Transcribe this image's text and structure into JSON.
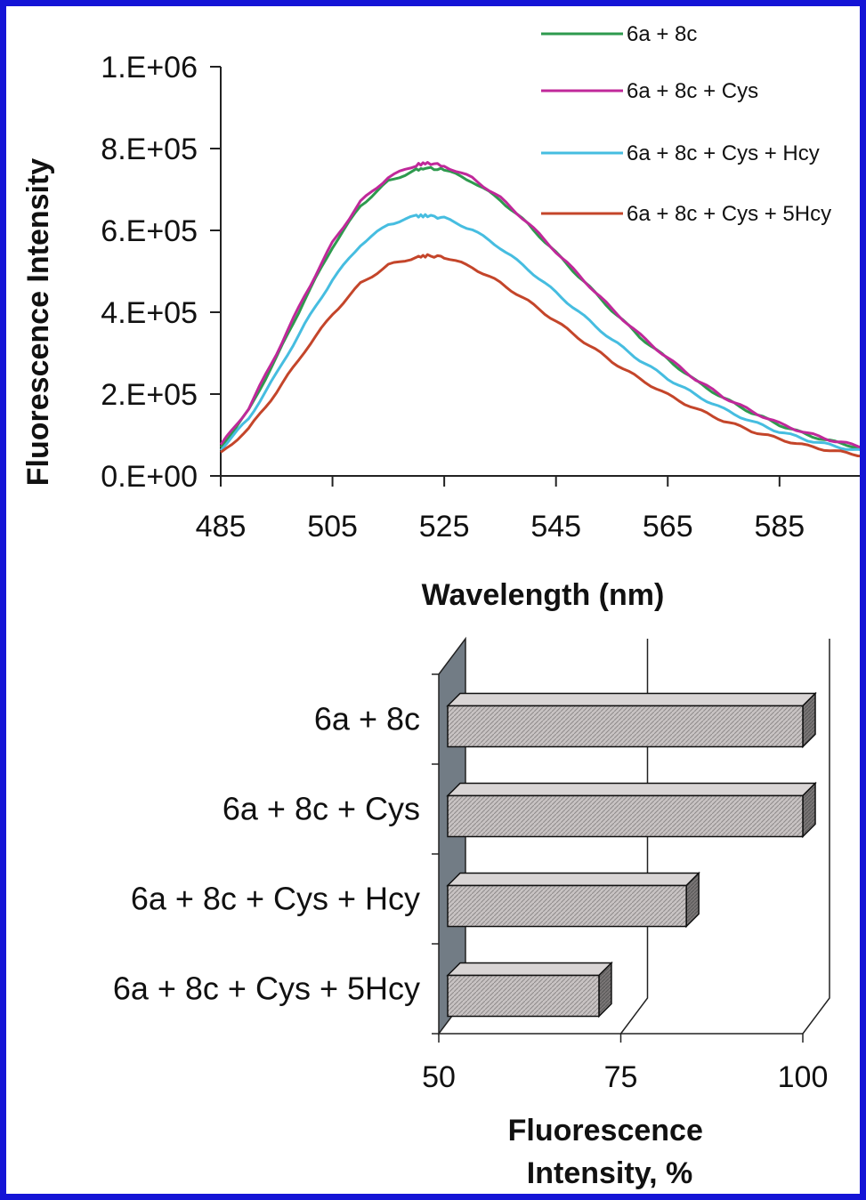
{
  "chart_data": [
    {
      "type": "line",
      "xlabel": "Wavelength (nm)",
      "ylabel": "Fluorescence Intensity",
      "xlim": [
        485,
        600
      ],
      "ylim": [
        0,
        1000000
      ],
      "x_ticks": [
        "485",
        "505",
        "525",
        "545",
        "565",
        "585"
      ],
      "y_ticks": [
        "0.E+00",
        "2.E+05",
        "4.E+05",
        "6.E+05",
        "8.E+05",
        "1.E+06"
      ],
      "legend_position": "top-right",
      "x": [
        485,
        490,
        495,
        500,
        505,
        510,
        515,
        520,
        522,
        525,
        530,
        535,
        540,
        545,
        550,
        555,
        560,
        565,
        570,
        575,
        580,
        585,
        590,
        595,
        600
      ],
      "series": [
        {
          "name": "6a + 8c",
          "color": "#2e9a4e",
          "values": [
            70000,
            160000,
            290000,
            430000,
            560000,
            660000,
            720000,
            748000,
            752000,
            748000,
            720000,
            675000,
            615000,
            545000,
            475000,
            405000,
            340000,
            285000,
            232000,
            190000,
            155000,
            125000,
            100000,
            82000,
            68000
          ]
        },
        {
          "name": "6a + 8c + Cys",
          "color": "#c0289a",
          "values": [
            75000,
            165000,
            300000,
            440000,
            570000,
            670000,
            730000,
            760000,
            765000,
            758000,
            728000,
            680000,
            618000,
            548000,
            478000,
            408000,
            345000,
            288000,
            236000,
            193000,
            158000,
            128000,
            104000,
            85000,
            70000
          ]
        },
        {
          "name": "6a + 8c + Cys + Hcy",
          "color": "#46bde0",
          "values": [
            65000,
            140000,
            250000,
            370000,
            480000,
            565000,
            615000,
            635000,
            636000,
            630000,
            602000,
            558000,
            505000,
            448000,
            390000,
            333000,
            283000,
            238000,
            198000,
            163000,
            133000,
            108000,
            88000,
            72000,
            60000
          ]
        },
        {
          "name": "6a + 8c + Cys + 5Hcy",
          "color": "#c4452a",
          "values": [
            55000,
            115000,
            205000,
            305000,
            395000,
            470000,
            515000,
            535000,
            538000,
            535000,
            510000,
            472000,
            427000,
            378000,
            328000,
            280000,
            237000,
            198000,
            164000,
            135000,
            110000,
            90000,
            73000,
            60000,
            50000
          ]
        }
      ]
    },
    {
      "type": "bar",
      "orientation": "horizontal",
      "xlabel": "Fluorescence Intensity, %",
      "xlim": [
        50,
        100
      ],
      "x_ticks": [
        "50",
        "75",
        "100"
      ],
      "categories": [
        "6a + 8c",
        "6a + 8c + Cys",
        "6a + 8c + Cys + Hcy",
        "6a + 8c + Cys + 5Hcy"
      ],
      "values": [
        100,
        100,
        84,
        72
      ]
    }
  ]
}
